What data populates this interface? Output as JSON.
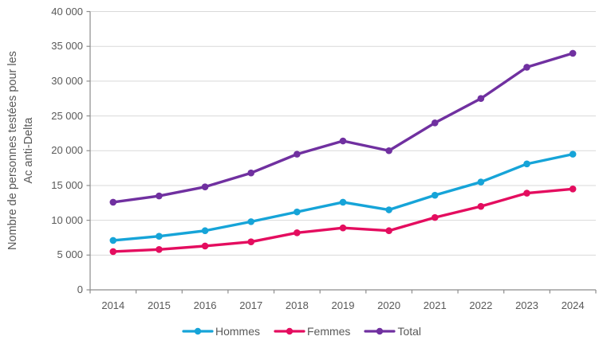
{
  "colors": {
    "grid": "#D9D9D9",
    "axis": "#8C8C8C",
    "text": "#595959",
    "background": "#FFFFFF"
  },
  "chart_data": {
    "type": "line",
    "title": "",
    "ylabel_line1": "Nombre de personnes testées pour les",
    "ylabel_line2": "Ac anti-Delta",
    "xlabel": "",
    "categories": [
      "2014",
      "2015",
      "2016",
      "2017",
      "2018",
      "2019",
      "2020",
      "2021",
      "2022",
      "2023",
      "2024"
    ],
    "series": [
      {
        "name": "Hommes",
        "color": "#16A4D8",
        "marker": "circle",
        "values": [
          7100,
          7700,
          8500,
          9800,
          11200,
          12600,
          11500,
          13600,
          15500,
          18100,
          19500
        ]
      },
      {
        "name": "Femmes",
        "color": "#E40D5F",
        "marker": "circle",
        "values": [
          5500,
          5800,
          6300,
          6900,
          8200,
          8900,
          8500,
          10400,
          12000,
          13900,
          14500
        ]
      },
      {
        "name": "Total",
        "color": "#7030A0",
        "marker": "circle",
        "values": [
          12600,
          13500,
          14800,
          16800,
          19500,
          21400,
          20000,
          24000,
          27500,
          32000,
          34000
        ]
      }
    ],
    "ylim": [
      0,
      40000
    ],
    "y_tick_step": 5000,
    "y_tick_labels": [
      "0",
      "5 000",
      "10 000",
      "15 000",
      "20 000",
      "25 000",
      "30 000",
      "35 000",
      "40 000"
    ],
    "grid": true,
    "legend_position": "bottom"
  }
}
